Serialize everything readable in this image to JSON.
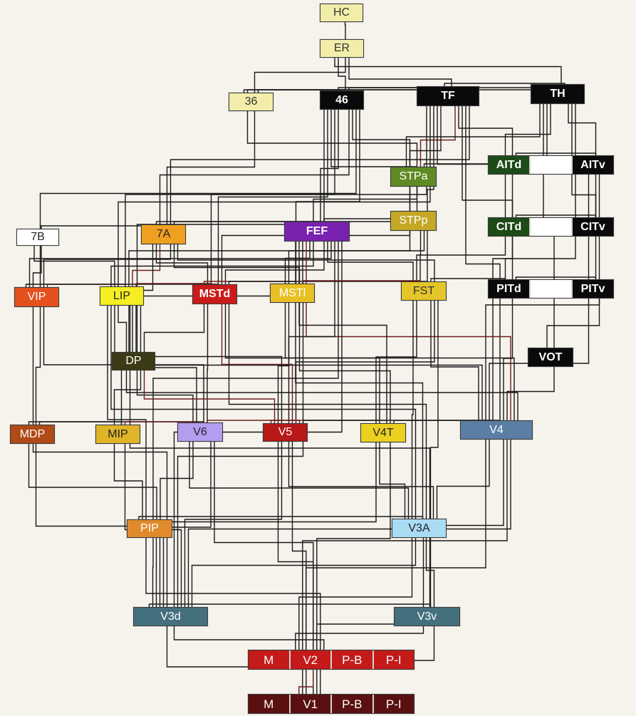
{
  "colors": {
    "wire": "#1a1a1a",
    "wire_red": "#6b1d1d",
    "background": "#f6f3ec"
  },
  "nodes": {
    "HC": {
      "label": "HC",
      "bg": "#f2eeaa",
      "fg": "#333333"
    },
    "ER": {
      "label": "ER",
      "bg": "#f2eeaa",
      "fg": "#333333"
    },
    "A36": {
      "label": "36",
      "bg": "#f2eeaa",
      "fg": "#333333"
    },
    "A46": {
      "label": "46",
      "bg": "#0a0a0a",
      "fg": "#ffffff"
    },
    "TF": {
      "label": "TF",
      "bg": "#0a0a0a",
      "fg": "#ffffff"
    },
    "TH": {
      "label": "TH",
      "bg": "#0a0a0a",
      "fg": "#ffffff"
    },
    "STPa": {
      "label": "STPa",
      "bg": "#5f8a24",
      "fg": "#ffffff"
    },
    "STPp": {
      "label": "STPp",
      "bg": "#c4a826",
      "fg": "#ffffff"
    },
    "AITd": {
      "label": "AITd",
      "bg": "#1c4a18",
      "fg": "#ffffff"
    },
    "AITv": {
      "label": "AITv",
      "bg": "#0a0a0a",
      "fg": "#ffffff"
    },
    "CITd": {
      "label": "CITd",
      "bg": "#1c4a18",
      "fg": "#ffffff"
    },
    "CITv": {
      "label": "CITv",
      "bg": "#0a0a0a",
      "fg": "#ffffff"
    },
    "PITd": {
      "label": "PITd",
      "bg": "#0a0a0a",
      "fg": "#ffffff"
    },
    "PITv": {
      "label": "PITv",
      "bg": "#0a0a0a",
      "fg": "#ffffff"
    },
    "VOT": {
      "label": "VOT",
      "bg": "#0a0a0a",
      "fg": "#ffffff"
    },
    "B7": {
      "label": "7B",
      "bg": "#ffffff",
      "fg": "#222222"
    },
    "A7": {
      "label": "7A",
      "bg": "#f0a020",
      "fg": "#222222"
    },
    "FEF": {
      "label": "FEF",
      "bg": "#7a22b0",
      "fg": "#ffffff"
    },
    "VIP": {
      "label": "VIP",
      "bg": "#e4501e",
      "fg": "#ffffff"
    },
    "LIP": {
      "label": "LIP",
      "bg": "#f4ee22",
      "fg": "#222222"
    },
    "MSTd": {
      "label": "MSTd",
      "bg": "#cc1a1a",
      "fg": "#ffffff"
    },
    "MSTl": {
      "label": "MSTl",
      "bg": "#e8c024",
      "fg": "#ffffff"
    },
    "FST": {
      "label": "FST",
      "bg": "#e4c62a",
      "fg": "#333333"
    },
    "DP": {
      "label": "DP",
      "bg": "#3c3a16",
      "fg": "#ffffff"
    },
    "MDP": {
      "label": "MDP",
      "bg": "#b04a16",
      "fg": "#ffffff"
    },
    "MIP": {
      "label": "MIP",
      "bg": "#e0b428",
      "fg": "#222222"
    },
    "V6": {
      "label": "V6",
      "bg": "#b49cf0",
      "fg": "#222222"
    },
    "V5": {
      "label": "V5",
      "bg": "#b81818",
      "fg": "#ffffff"
    },
    "V4T": {
      "label": "V4T",
      "bg": "#ecd020",
      "fg": "#222222"
    },
    "V4": {
      "label": "V4",
      "bg": "#5a7ea4",
      "fg": "#ffffff"
    },
    "PIP": {
      "label": "PIP",
      "bg": "#e08a2c",
      "fg": "#ffffff"
    },
    "V3A": {
      "label": "V3A",
      "bg": "#a8dcf4",
      "fg": "#222222"
    },
    "V3d": {
      "label": "V3d",
      "bg": "#44707e",
      "fg": "#ffffff"
    },
    "V3v": {
      "label": "V3v",
      "bg": "#44707e",
      "fg": "#ffffff"
    }
  },
  "v2_row": {
    "bg": "#c41a1a",
    "fg": "#ffffff",
    "labels": [
      "M",
      "V2",
      "P-B",
      "P-I"
    ]
  },
  "v1_row": {
    "bg": "#5a1010",
    "fg": "#ffffff",
    "labels": [
      "M",
      "V1",
      "P-B",
      "P-I"
    ]
  },
  "edges": [
    [
      "HC",
      "ER"
    ],
    [
      "ER",
      "A36"
    ],
    [
      "ER",
      "A46"
    ],
    [
      "ER",
      "TF"
    ],
    [
      "ER",
      "TH"
    ],
    [
      "A36",
      "A46"
    ],
    [
      "A36",
      "TF"
    ],
    [
      "A36",
      "TH"
    ],
    [
      "A36",
      "A7"
    ],
    [
      "A36",
      "STPa"
    ],
    [
      "A46",
      "TF"
    ],
    [
      "A46",
      "TH"
    ],
    [
      "A46",
      "FEF"
    ],
    [
      "A46",
      "A7"
    ],
    [
      "A46",
      "LIP"
    ],
    [
      "A46",
      "STPa"
    ],
    [
      "A46",
      "STPp"
    ],
    [
      "A46",
      "VIP"
    ],
    [
      "A46",
      "MSTd"
    ],
    [
      "A46",
      "MSTl"
    ],
    [
      "A46",
      "DP"
    ],
    [
      "TF",
      "TH"
    ],
    [
      "TF",
      "STPa"
    ],
    [
      "TF",
      "STPp"
    ],
    [
      "TF",
      "AITd"
    ],
    [
      "TF",
      "CITd"
    ],
    [
      "TF",
      "PITd"
    ],
    [
      "TF",
      "FST"
    ],
    [
      "TF",
      "V4"
    ],
    [
      "TF",
      "LIP"
    ],
    [
      "TF",
      "A7"
    ],
    [
      "TF",
      "MSTd"
    ],
    [
      "TH",
      "AITd"
    ],
    [
      "TH",
      "AITv"
    ],
    [
      "TH",
      "CITv"
    ],
    [
      "TH",
      "PITv"
    ],
    [
      "TH",
      "VOT"
    ],
    [
      "TH",
      "V4"
    ],
    [
      "TH",
      "STPa"
    ],
    [
      "STPa",
      "AITd"
    ],
    [
      "STPa",
      "FEF"
    ],
    [
      "STPa",
      "MSTd"
    ],
    [
      "STPp",
      "FEF"
    ],
    [
      "STPp",
      "MSTl"
    ],
    [
      "STPp",
      "FST"
    ],
    [
      "STPp",
      "A7"
    ],
    [
      "STPp",
      "LIP"
    ],
    [
      "AITd",
      "AITv"
    ],
    [
      "AITd",
      "CITd"
    ],
    [
      "AITv",
      "CITv"
    ],
    [
      "CITd",
      "CITv"
    ],
    [
      "CITd",
      "PITd"
    ],
    [
      "CITv",
      "PITv"
    ],
    [
      "PITd",
      "PITv"
    ],
    [
      "PITd",
      "V4"
    ],
    [
      "PITv",
      "V4"
    ],
    [
      "PITd",
      "FST"
    ],
    [
      "VOT",
      "V4"
    ],
    [
      "VOT",
      "PITv"
    ],
    [
      "AITv",
      "V4"
    ],
    [
      "CITd",
      "FST"
    ],
    [
      "B7",
      "A7"
    ],
    [
      "B7",
      "VIP"
    ],
    [
      "B7",
      "LIP"
    ],
    [
      "A7",
      "FEF"
    ],
    [
      "A7",
      "LIP"
    ],
    [
      "A7",
      "VIP"
    ],
    [
      "A7",
      "MSTd"
    ],
    [
      "A7",
      "MSTl"
    ],
    [
      "A7",
      "DP"
    ],
    [
      "A7",
      "FST"
    ],
    [
      "FEF",
      "LIP"
    ],
    [
      "FEF",
      "MSTd"
    ],
    [
      "FEF",
      "MSTl"
    ],
    [
      "FEF",
      "FST"
    ],
    [
      "FEF",
      "V4"
    ],
    [
      "FEF",
      "VIP"
    ],
    [
      "FEF",
      "DP"
    ],
    [
      "FEF",
      "V5"
    ],
    [
      "FEF",
      "V4T"
    ],
    [
      "FEF",
      "PIP"
    ],
    [
      "FEF",
      "V3A"
    ],
    [
      "FEF",
      "V3d"
    ],
    [
      "VIP",
      "LIP"
    ],
    [
      "VIP",
      "MDP"
    ],
    [
      "VIP",
      "MSTd"
    ],
    [
      "VIP",
      "V3d"
    ],
    [
      "VIP",
      "V6"
    ],
    [
      "LIP",
      "MSTd"
    ],
    [
      "LIP",
      "DP"
    ],
    [
      "LIP",
      "MIP"
    ],
    [
      "LIP",
      "V6"
    ],
    [
      "LIP",
      "V5"
    ],
    [
      "LIP",
      "V3A"
    ],
    [
      "LIP",
      "V4"
    ],
    [
      "LIP",
      "PIP"
    ],
    [
      "MSTd",
      "MSTl"
    ],
    [
      "MSTd",
      "V5"
    ],
    [
      "MSTd",
      "V6"
    ],
    [
      "MSTd",
      "V4T"
    ],
    [
      "MSTd",
      "FST"
    ],
    [
      "MSTd",
      "DP"
    ],
    [
      "MSTd",
      "V3A"
    ],
    [
      "MSTl",
      "FST"
    ],
    [
      "MSTl",
      "V5"
    ],
    [
      "MSTl",
      "V4T"
    ],
    [
      "MSTl",
      "V4"
    ],
    [
      "MSTl",
      "V3d"
    ],
    [
      "FST",
      "V4"
    ],
    [
      "FST",
      "V4T"
    ],
    [
      "FST",
      "V5"
    ],
    [
      "FST",
      "V3A"
    ],
    [
      "FST",
      "V3v"
    ],
    [
      "DP",
      "V6"
    ],
    [
      "DP",
      "V3A"
    ],
    [
      "DP",
      "MIP"
    ],
    [
      "DP",
      "V4"
    ],
    [
      "DP",
      "V5"
    ],
    [
      "MDP",
      "MIP"
    ],
    [
      "MDP",
      "V6"
    ],
    [
      "MDP",
      "V3d"
    ],
    [
      "MDP",
      "PIP"
    ],
    [
      "MIP",
      "V6"
    ],
    [
      "MIP",
      "PIP"
    ],
    [
      "MIP",
      "V3d"
    ],
    [
      "V6",
      "V5"
    ],
    [
      "V6",
      "PIP"
    ],
    [
      "V6",
      "V3d"
    ],
    [
      "V6",
      "V3A"
    ],
    [
      "V6",
      "V2"
    ],
    [
      "V5",
      "V4T"
    ],
    [
      "V5",
      "V3A"
    ],
    [
      "V5",
      "V3d"
    ],
    [
      "V5",
      "V4"
    ],
    [
      "V5",
      "V2"
    ],
    [
      "V5",
      "V1"
    ],
    [
      "V4T",
      "V4"
    ],
    [
      "V4T",
      "V3A"
    ],
    [
      "V4T",
      "V2"
    ],
    [
      "V4T",
      "V3d"
    ],
    [
      "V4",
      "V3v"
    ],
    [
      "V4",
      "V3A"
    ],
    [
      "V4",
      "V2"
    ],
    [
      "V4",
      "V1"
    ],
    [
      "V4",
      "V3d"
    ],
    [
      "PIP",
      "V3d"
    ],
    [
      "PIP",
      "V2"
    ],
    [
      "PIP",
      "V3A"
    ],
    [
      "V3A",
      "V3d"
    ],
    [
      "V3A",
      "V3v"
    ],
    [
      "V3A",
      "V2"
    ],
    [
      "V3A",
      "V1"
    ],
    [
      "V3d",
      "V3v"
    ],
    [
      "V3d",
      "V2"
    ],
    [
      "V3d",
      "V1"
    ],
    [
      "V3v",
      "V2"
    ],
    [
      "V3v",
      "V1"
    ],
    [
      "V2",
      "V1"
    ]
  ],
  "red_edges": [
    [
      "MSTd",
      "V5"
    ],
    [
      "MSTd",
      "MSTl"
    ],
    [
      "V6",
      "V5"
    ],
    [
      "V5",
      "V4T"
    ],
    [
      "LIP",
      "MSTd"
    ],
    [
      "A7",
      "LIP"
    ],
    [
      "STPa",
      "TF"
    ],
    [
      "FEF",
      "V4"
    ],
    [
      "DP",
      "V5"
    ],
    [
      "VIP",
      "LIP"
    ],
    [
      "V2",
      "V1"
    ],
    [
      "MSTl",
      "FST"
    ],
    [
      "MIP",
      "V6"
    ]
  ]
}
